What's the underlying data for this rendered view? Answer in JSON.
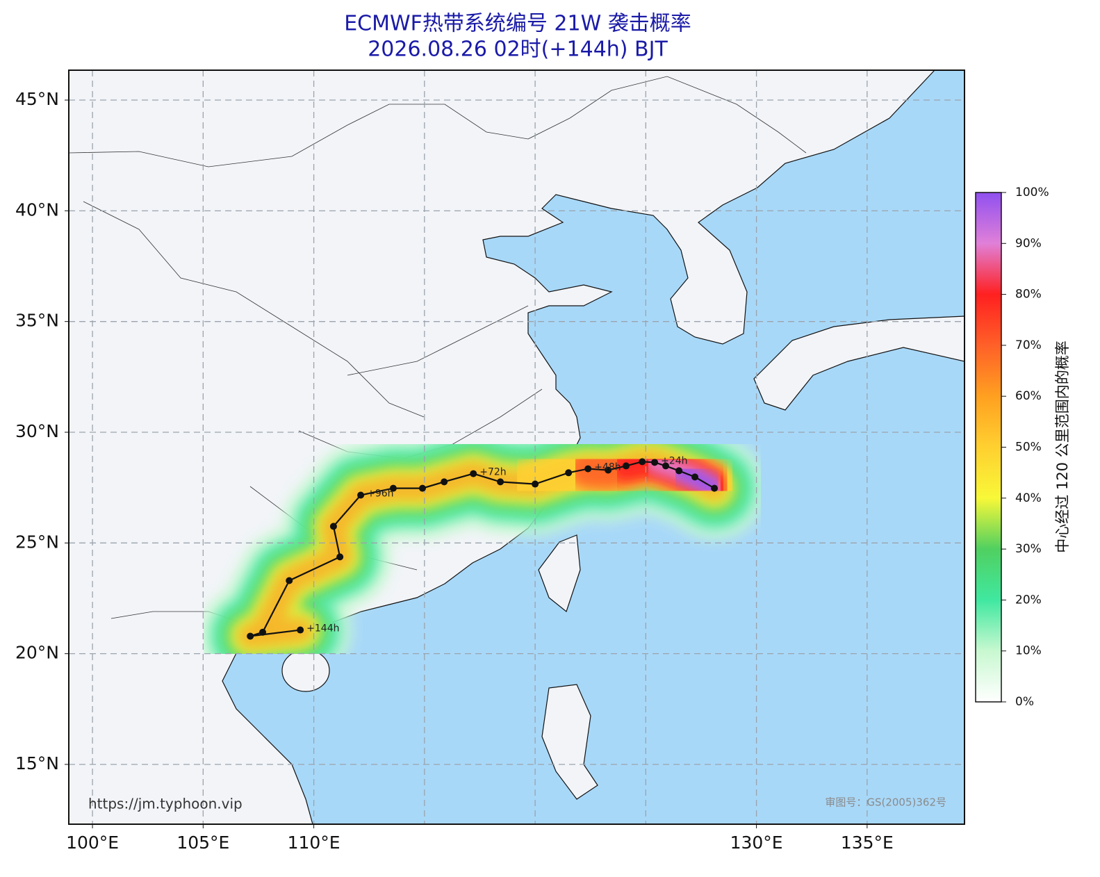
{
  "title": "ECMWF热带系统编号 21W 袭击概率",
  "subtitle": "2026.08.26 02时(+144h) BJT",
  "map": {
    "xlim": [
      98.93,
      139.4
    ],
    "ylim": [
      12.3,
      46.35
    ],
    "xgrid": [
      100,
      105,
      110,
      115,
      120,
      125,
      130,
      135
    ],
    "xticks": [
      {
        "value": 100,
        "label": "100°E"
      },
      {
        "value": 105,
        "label": "105°E"
      },
      {
        "value": 110,
        "label": "110°E"
      },
      {
        "value": 130,
        "label": "130°E"
      },
      {
        "value": 135,
        "label": "135°E"
      }
    ],
    "yticks": [
      {
        "value": 15,
        "label": "15°N"
      },
      {
        "value": 20,
        "label": "20°N"
      },
      {
        "value": 25,
        "label": "25°N"
      },
      {
        "value": 30,
        "label": "30°N"
      },
      {
        "value": 35,
        "label": "35°N"
      },
      {
        "value": 40,
        "label": "40°N"
      },
      {
        "value": 45,
        "label": "45°N"
      }
    ],
    "grid": true,
    "land_color": "#f2f4f8",
    "ocean_color": "#a8d8f8"
  },
  "track": {
    "color": "#111111",
    "lon": [
      128.1,
      127.22,
      126.5,
      125.9,
      125.4,
      124.84,
      124.11,
      123.3,
      122.39,
      121.51,
      120.0,
      118.43,
      117.21,
      115.89,
      114.91,
      113.59,
      112.12,
      110.89,
      111.18,
      108.89,
      107.69,
      107.13,
      109.39
    ],
    "lat": [
      27.47,
      27.98,
      28.26,
      28.48,
      28.64,
      28.67,
      28.48,
      28.29,
      28.35,
      28.17,
      27.66,
      27.76,
      28.13,
      27.76,
      27.47,
      27.47,
      27.16,
      25.75,
      24.37,
      23.3,
      20.97,
      20.79,
      21.07
    ],
    "labels": [
      null,
      null,
      null,
      null,
      "+24h",
      null,
      null,
      null,
      "+48h",
      null,
      null,
      null,
      "+72h",
      null,
      null,
      null,
      "+96h",
      null,
      null,
      null,
      null,
      null,
      "+144h"
    ]
  },
  "colorbar": {
    "label": "中心经过 120 公里范围内的概率",
    "lim": [
      0,
      100
    ],
    "colors": [
      "#ffffff",
      "#c8f8d0",
      "#40e8a0",
      "#50d060",
      "#f8f838",
      "#ffd030",
      "#ffa020",
      "#ff6028",
      "#ff2020",
      "#e080d8",
      "#9050f0"
    ],
    "ticks": [
      {
        "value": 0,
        "label": "0%"
      },
      {
        "value": 10,
        "label": "10%"
      },
      {
        "value": 20,
        "label": "20%"
      },
      {
        "value": 30,
        "label": "30%"
      },
      {
        "value": 40,
        "label": "40%"
      },
      {
        "value": 50,
        "label": "50%"
      },
      {
        "value": 60,
        "label": "60%"
      },
      {
        "value": 70,
        "label": "70%"
      },
      {
        "value": 80,
        "label": "80%"
      },
      {
        "value": 90,
        "label": "90%"
      },
      {
        "value": 100,
        "label": "100%"
      }
    ]
  },
  "source_url": "https://jm.typhoon.vip",
  "review_number": "审图号：GS(2005)362号"
}
